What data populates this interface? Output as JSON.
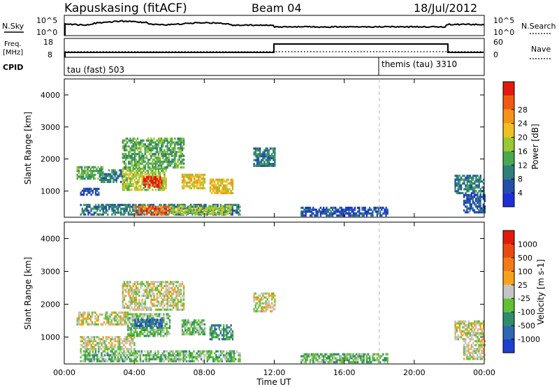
{
  "header": {
    "station": "Kapuskasing (fitACF)",
    "beam": "Beam 04",
    "date": "18/Jul/2012"
  },
  "status_strip": {
    "nsky_label": "N.Sky",
    "nsky_tick_top": "10^5",
    "nsky_tick_bottom": "10^0",
    "nsearch_label": "N.Search",
    "nsearch_tick_top": "10^5",
    "nsearch_tick_bottom": "10^0",
    "freq_label_1": "Freq.",
    "freq_label_2": "[MHz]",
    "freq_tick_top": "18",
    "freq_tick_bottom": "8",
    "nave_label": "Nave",
    "nave_tick_top": "60",
    "nave_tick_bottom": "0",
    "cpid_label": "CPID",
    "cpid_1": "tau (fast) 503",
    "cpid_2": "themis (tau) 3310"
  },
  "chart_data": [
    {
      "type": "heatmap",
      "title": "",
      "xlabel": "",
      "ylabel": "Slant Range [km]",
      "xlim": [
        0,
        24
      ],
      "ylim": [
        180,
        4500
      ],
      "y_ticks": [
        "1000",
        "2000",
        "3000",
        "4000"
      ],
      "x_ticks": [
        "00:00",
        "04:00",
        "08:00",
        "12:00",
        "16:00",
        "20:00",
        "00:00"
      ],
      "colorbar": {
        "label": "Power [dB]",
        "ticks": [
          "4",
          "8",
          "12",
          "16",
          "20",
          "24",
          "28"
        ],
        "colors": [
          "#1f2fd8",
          "#244fa8",
          "#2f7f7a",
          "#4aa84d",
          "#9bc832",
          "#f0c020",
          "#f79318",
          "#ef5a12",
          "#e01b0d"
        ]
      },
      "regions": [
        {
          "t0": 0.7,
          "t1": 2.2,
          "r0": 1350,
          "r1": 1750,
          "level": 3
        },
        {
          "t0": 2.0,
          "t1": 3.4,
          "r0": 1250,
          "r1": 1650,
          "level": 2
        },
        {
          "t0": 3.3,
          "t1": 5.8,
          "r0": 1000,
          "r1": 1700,
          "level": 4
        },
        {
          "t0": 4.5,
          "t1": 5.6,
          "r0": 1100,
          "r1": 1450,
          "level": 8
        },
        {
          "t0": 3.3,
          "t1": 6.8,
          "r0": 1700,
          "r1": 2650,
          "level": 3
        },
        {
          "t0": 6.7,
          "t1": 8.0,
          "r0": 1050,
          "r1": 1500,
          "level": 5
        },
        {
          "t0": 8.3,
          "t1": 9.6,
          "r0": 900,
          "r1": 1350,
          "level": 5
        },
        {
          "t0": 10.8,
          "t1": 12.0,
          "r0": 1750,
          "r1": 2350,
          "level": 2
        },
        {
          "t0": 0.9,
          "t1": 10.0,
          "r0": 230,
          "r1": 550,
          "level": 2
        },
        {
          "t0": 4.0,
          "t1": 6.0,
          "r0": 230,
          "r1": 480,
          "level": 7
        },
        {
          "t0": 6.0,
          "t1": 9.5,
          "r0": 250,
          "r1": 500,
          "level": 4
        },
        {
          "t0": 0.9,
          "t1": 2.0,
          "r0": 850,
          "r1": 1050,
          "level": 1
        },
        {
          "t0": 13.5,
          "t1": 18.5,
          "r0": 200,
          "r1": 450,
          "level": 1
        },
        {
          "t0": 22.3,
          "t1": 24.0,
          "r0": 900,
          "r1": 1500,
          "level": 2
        },
        {
          "t0": 22.8,
          "t1": 24.0,
          "r0": 300,
          "r1": 900,
          "level": 1
        }
      ]
    },
    {
      "type": "heatmap",
      "title": "",
      "xlabel": "Time UT",
      "ylabel": "Slant Range [km]",
      "xlim": [
        0,
        24
      ],
      "ylim": [
        180,
        4500
      ],
      "y_ticks": [
        "1000",
        "2000",
        "3000",
        "4000"
      ],
      "x_ticks": [
        "00:00",
        "04:00",
        "08:00",
        "12:00",
        "16:00",
        "20:00",
        "00:00"
      ],
      "colorbar": {
        "label": "Velocity [m s-1]",
        "ticks": [
          "1000",
          "500",
          "100",
          "25",
          "-25",
          "-100",
          "-500",
          "-1000"
        ],
        "colors": [
          "#1d3fcf",
          "#2f67b0",
          "#2f8c6a",
          "#61c033",
          "#c5c5c5",
          "#f7a21c",
          "#f47a16",
          "#ea4a12",
          "#e01b0d"
        ]
      },
      "regions": [
        {
          "t0": 0.7,
          "t1": 3.6,
          "r0": 1350,
          "r1": 1750,
          "level": 4
        },
        {
          "t0": 3.3,
          "t1": 6.8,
          "r0": 1800,
          "r1": 2700,
          "level": 4
        },
        {
          "t0": 3.6,
          "t1": 6.0,
          "r0": 1000,
          "r1": 1700,
          "level": 3
        },
        {
          "t0": 4.0,
          "t1": 5.6,
          "r0": 1250,
          "r1": 1550,
          "level": 1
        },
        {
          "t0": 6.7,
          "t1": 8.0,
          "r0": 1050,
          "r1": 1500,
          "level": 3
        },
        {
          "t0": 8.3,
          "t1": 9.6,
          "r0": 900,
          "r1": 1350,
          "level": 2
        },
        {
          "t0": 10.8,
          "t1": 12.0,
          "r0": 1750,
          "r1": 2350,
          "level": 4
        },
        {
          "t0": 0.9,
          "t1": 10.0,
          "r0": 230,
          "r1": 550,
          "level": 3
        },
        {
          "t0": 0.9,
          "t1": 4.0,
          "r0": 600,
          "r1": 1000,
          "level": 4
        },
        {
          "t0": 13.5,
          "t1": 18.5,
          "r0": 200,
          "r1": 450,
          "level": 3
        },
        {
          "t0": 22.3,
          "t1": 24.0,
          "r0": 900,
          "r1": 1500,
          "level": 4
        },
        {
          "t0": 22.8,
          "t1": 24.0,
          "r0": 300,
          "r1": 900,
          "level": 4
        }
      ]
    }
  ]
}
